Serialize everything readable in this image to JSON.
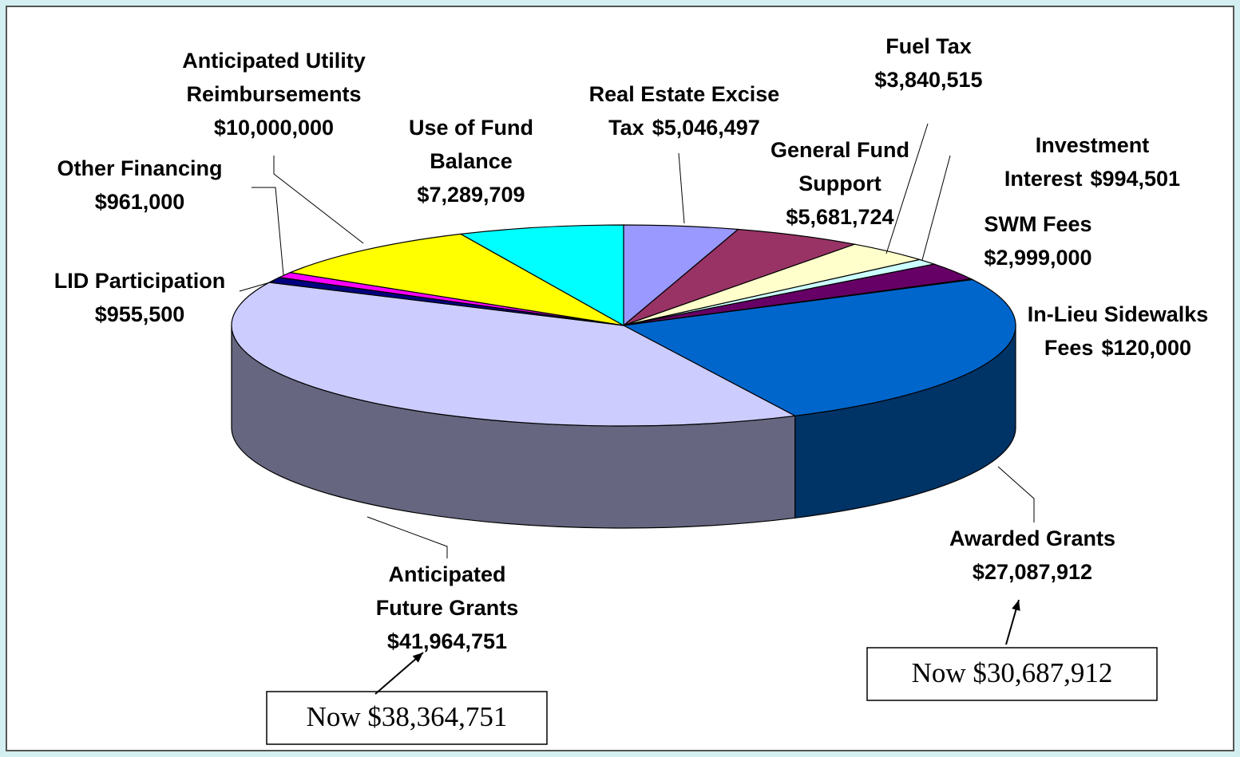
{
  "chart_data": {
    "type": "pie3d",
    "categories": [
      "Real Estate Excise Tax",
      "General Fund Support",
      "Fuel Tax",
      "Investment Interest",
      "SWM Fees",
      "In-Lieu Sidewalks Fees",
      "Awarded Grants",
      "Anticipated Future Grants",
      "LID Participation",
      "Other Financing",
      "Anticipated Utility Reimbursements",
      "Use of Fund Balance"
    ],
    "values": [
      5046497,
      5681724,
      3840515,
      994501,
      2999000,
      120000,
      27087912,
      41964751,
      955500,
      961000,
      10000000,
      7289709
    ],
    "value_labels": [
      "$5,046,497",
      "$5,681,724",
      "$3,840,515",
      "$994,501",
      "$2,999,000",
      "$120,000",
      "$27,087,912",
      "$41,964,751",
      "$955,500",
      "$961,000",
      "$10,000,000",
      "$7,289,709"
    ],
    "colors": [
      "#9999ff",
      "#993366",
      "#ffffcc",
      "#ccffff",
      "#660066",
      "#ff8080",
      "#0066cc",
      "#ccccff",
      "#000080",
      "#ff00ff",
      "#ffff00",
      "#00ffff"
    ],
    "annotations": [
      "Now $38,364,751",
      "Now $30,687,912"
    ]
  }
}
